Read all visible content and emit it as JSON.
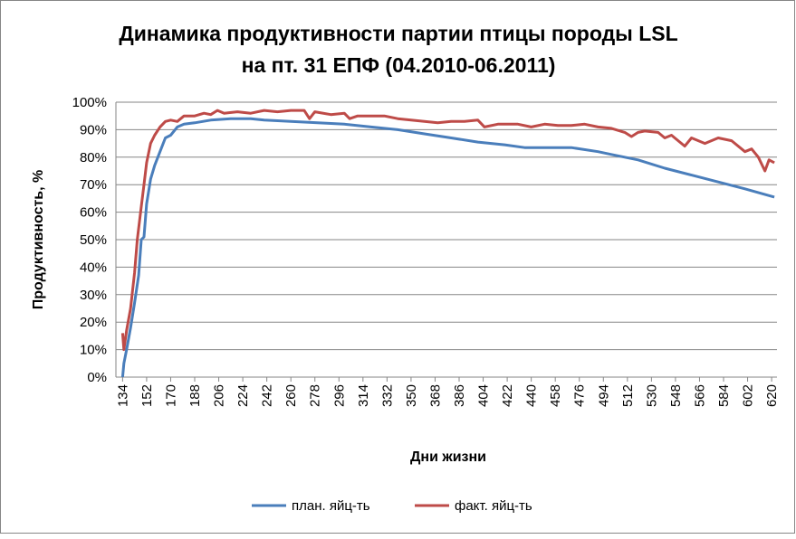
{
  "chart_data": {
    "type": "line",
    "title": "Динамика продуктивности партии птицы породы LSL",
    "subtitle": "на пт. 31 ЕПФ (04.2010-06.2011)",
    "x_label": "Дни жизни",
    "y_label": "Продуктивность, %",
    "xlim": [
      129,
      624
    ],
    "xticks": [
      134,
      152,
      170,
      188,
      206,
      224,
      242,
      260,
      278,
      296,
      314,
      332,
      350,
      368,
      386,
      404,
      422,
      440,
      458,
      476,
      494,
      512,
      530,
      548,
      566,
      584,
      602,
      620
    ],
    "ylim": [
      0,
      100
    ],
    "yticks": [
      {
        "value": 0,
        "label": "0%"
      },
      {
        "value": 10,
        "label": "10%"
      },
      {
        "value": 20,
        "label": "20%"
      },
      {
        "value": 30,
        "label": "30%"
      },
      {
        "value": 40,
        "label": "40%"
      },
      {
        "value": 50,
        "label": "50%"
      },
      {
        "value": 60,
        "label": "60%"
      },
      {
        "value": 70,
        "label": "70%"
      },
      {
        "value": 80,
        "label": "80%"
      },
      {
        "value": 90,
        "label": "90%"
      },
      {
        "value": 100,
        "label": "100%"
      }
    ],
    "grid": true,
    "legend": "bottom",
    "series": [
      {
        "name": "план. яйц-ть",
        "color": "#4a7ebb",
        "x": [
          134,
          135,
          137,
          140,
          143,
          146,
          148,
          150,
          152,
          155,
          158,
          162,
          166,
          170,
          175,
          180,
          188,
          200,
          215,
          230,
          240,
          260,
          280,
          300,
          320,
          340,
          360,
          380,
          400,
          420,
          435,
          470,
          490,
          500,
          520,
          540,
          560,
          580,
          600,
          622
        ],
        "values": [
          0,
          5,
          10,
          18,
          27,
          37,
          50,
          51,
          63,
          72,
          77,
          82,
          87,
          88,
          91,
          92,
          92.5,
          93.5,
          94,
          94,
          93.5,
          93,
          92.5,
          92,
          91,
          90,
          88.5,
          87,
          85.5,
          84.5,
          83.5,
          83.5,
          82,
          81,
          79,
          76,
          73.5,
          71,
          68.5,
          65.5
        ]
      },
      {
        "name": "факт. яйц-ть",
        "color": "#be4b48",
        "x": [
          134,
          135,
          137,
          140,
          143,
          145,
          148,
          150,
          152,
          155,
          158,
          162,
          166,
          170,
          175,
          180,
          188,
          195,
          200,
          205,
          210,
          220,
          230,
          240,
          250,
          260,
          270,
          274,
          278,
          290,
          300,
          304,
          310,
          320,
          330,
          340,
          350,
          360,
          370,
          380,
          390,
          400,
          405,
          415,
          430,
          440,
          450,
          460,
          470,
          480,
          490,
          500,
          510,
          515,
          520,
          525,
          535,
          540,
          545,
          550,
          555,
          560,
          570,
          580,
          590,
          600,
          605,
          610,
          615,
          618,
          622
        ],
        "values": [
          16,
          10,
          17,
          25,
          38,
          50,
          62,
          70,
          78,
          85,
          88,
          91,
          93,
          93.5,
          93,
          95,
          95,
          96,
          95.5,
          97,
          96,
          96.5,
          96,
          97,
          96.5,
          97,
          97,
          94,
          96.5,
          95.5,
          96,
          94,
          95,
          95,
          95,
          94,
          93.5,
          93,
          92.5,
          93,
          93,
          93.5,
          91,
          92,
          92,
          91,
          92,
          91.5,
          91.5,
          92,
          91,
          90.5,
          89,
          87.5,
          89,
          89.5,
          89,
          87,
          88,
          86,
          84,
          87,
          85,
          87,
          86,
          82,
          83,
          80,
          75,
          79,
          78
        ]
      }
    ]
  }
}
